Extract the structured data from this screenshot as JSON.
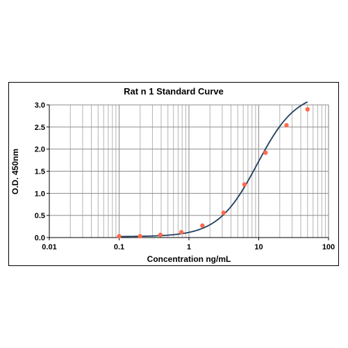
{
  "chart_data": {
    "type": "scatter",
    "title": "Rat n 1 Standard Curve",
    "xlabel": "Concentration ng/mL",
    "ylabel": "O.D. 450nm",
    "x_scale": "log",
    "xlim": [
      0.01,
      100
    ],
    "ylim": [
      0,
      3.0
    ],
    "x_ticks": [
      0.01,
      0.1,
      1,
      10,
      100
    ],
    "x_tick_labels": [
      "0.01",
      "0.1",
      "1",
      "10",
      "100"
    ],
    "y_ticks": [
      0,
      0.5,
      1.0,
      1.5,
      2.0,
      2.5,
      3.0
    ],
    "y_tick_labels": [
      "0.0",
      "0.5",
      "1.0",
      "1.5",
      "2.0",
      "2.5",
      "3.0"
    ],
    "grid": true,
    "legend": "none",
    "series": [
      {
        "points": [
          {
            "x": 0.1,
            "y": 0.03
          },
          {
            "x": 0.2,
            "y": 0.03
          },
          {
            "x": 0.39,
            "y": 0.06
          },
          {
            "x": 0.78,
            "y": 0.12
          },
          {
            "x": 1.56,
            "y": 0.27
          },
          {
            "x": 3.13,
            "y": 0.56
          },
          {
            "x": 6.25,
            "y": 1.2
          },
          {
            "x": 12.5,
            "y": 1.92
          },
          {
            "x": 25,
            "y": 2.54
          },
          {
            "x": 50,
            "y": 2.9
          }
        ],
        "marker_color": "#ff6a4d",
        "fit_line_color": "#1f3d5c",
        "fit": {
          "type": "4PL",
          "bottom": 0.02,
          "top": 3.3,
          "ec50": 9.5,
          "hill": 1.55
        }
      }
    ]
  }
}
